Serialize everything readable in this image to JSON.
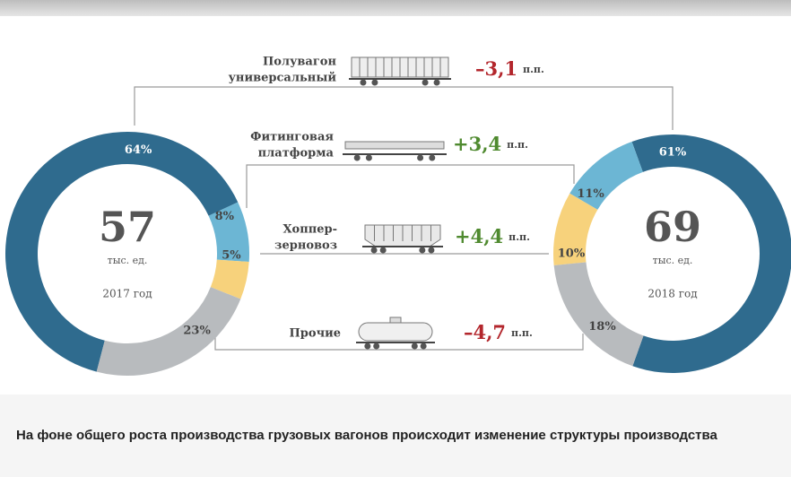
{
  "chart_data": [
    {
      "type": "pie",
      "donut": true,
      "center_value": 57,
      "center_unit": "тыс. ед.",
      "center_label": "2017 год",
      "values": [
        64,
        8,
        5,
        23
      ],
      "value_labels": [
        "64%",
        "8%",
        "5%",
        "23%"
      ],
      "colors": [
        "#2f6b8e",
        "#6cb6d4",
        "#f7d27c",
        "#b8bbbe"
      ]
    },
    {
      "type": "pie",
      "donut": true,
      "center_value": 69,
      "center_unit": "тыс. ед.",
      "center_label": "2018 год",
      "values": [
        61,
        11,
        10,
        18
      ],
      "value_labels": [
        "61%",
        "11%",
        "10%",
        "18%"
      ],
      "colors": [
        "#2f6b8e",
        "#6cb6d4",
        "#f7d27c",
        "#b8bbbe"
      ]
    }
  ],
  "changes": [
    {
      "label_lines": [
        "Полувагон",
        "универсальный"
      ],
      "value": -3.1,
      "value_label": "–3,1",
      "unit": "п.п."
    },
    {
      "label_lines": [
        "Фитинговая",
        "платформа"
      ],
      "value": 3.4,
      "value_label": "+3,4",
      "unit": "п.п."
    },
    {
      "label_lines": [
        "Хоппер-",
        "зерновоз"
      ],
      "value": 4.4,
      "value_label": "+4,4",
      "unit": "п.п."
    },
    {
      "label_lines": [
        "Прочие"
      ],
      "value": -4.7,
      "value_label": "–4,7",
      "unit": "п.п."
    }
  ],
  "caption": "На фоне общего роста производства грузовых вагонов происходит изменение структуры производства"
}
